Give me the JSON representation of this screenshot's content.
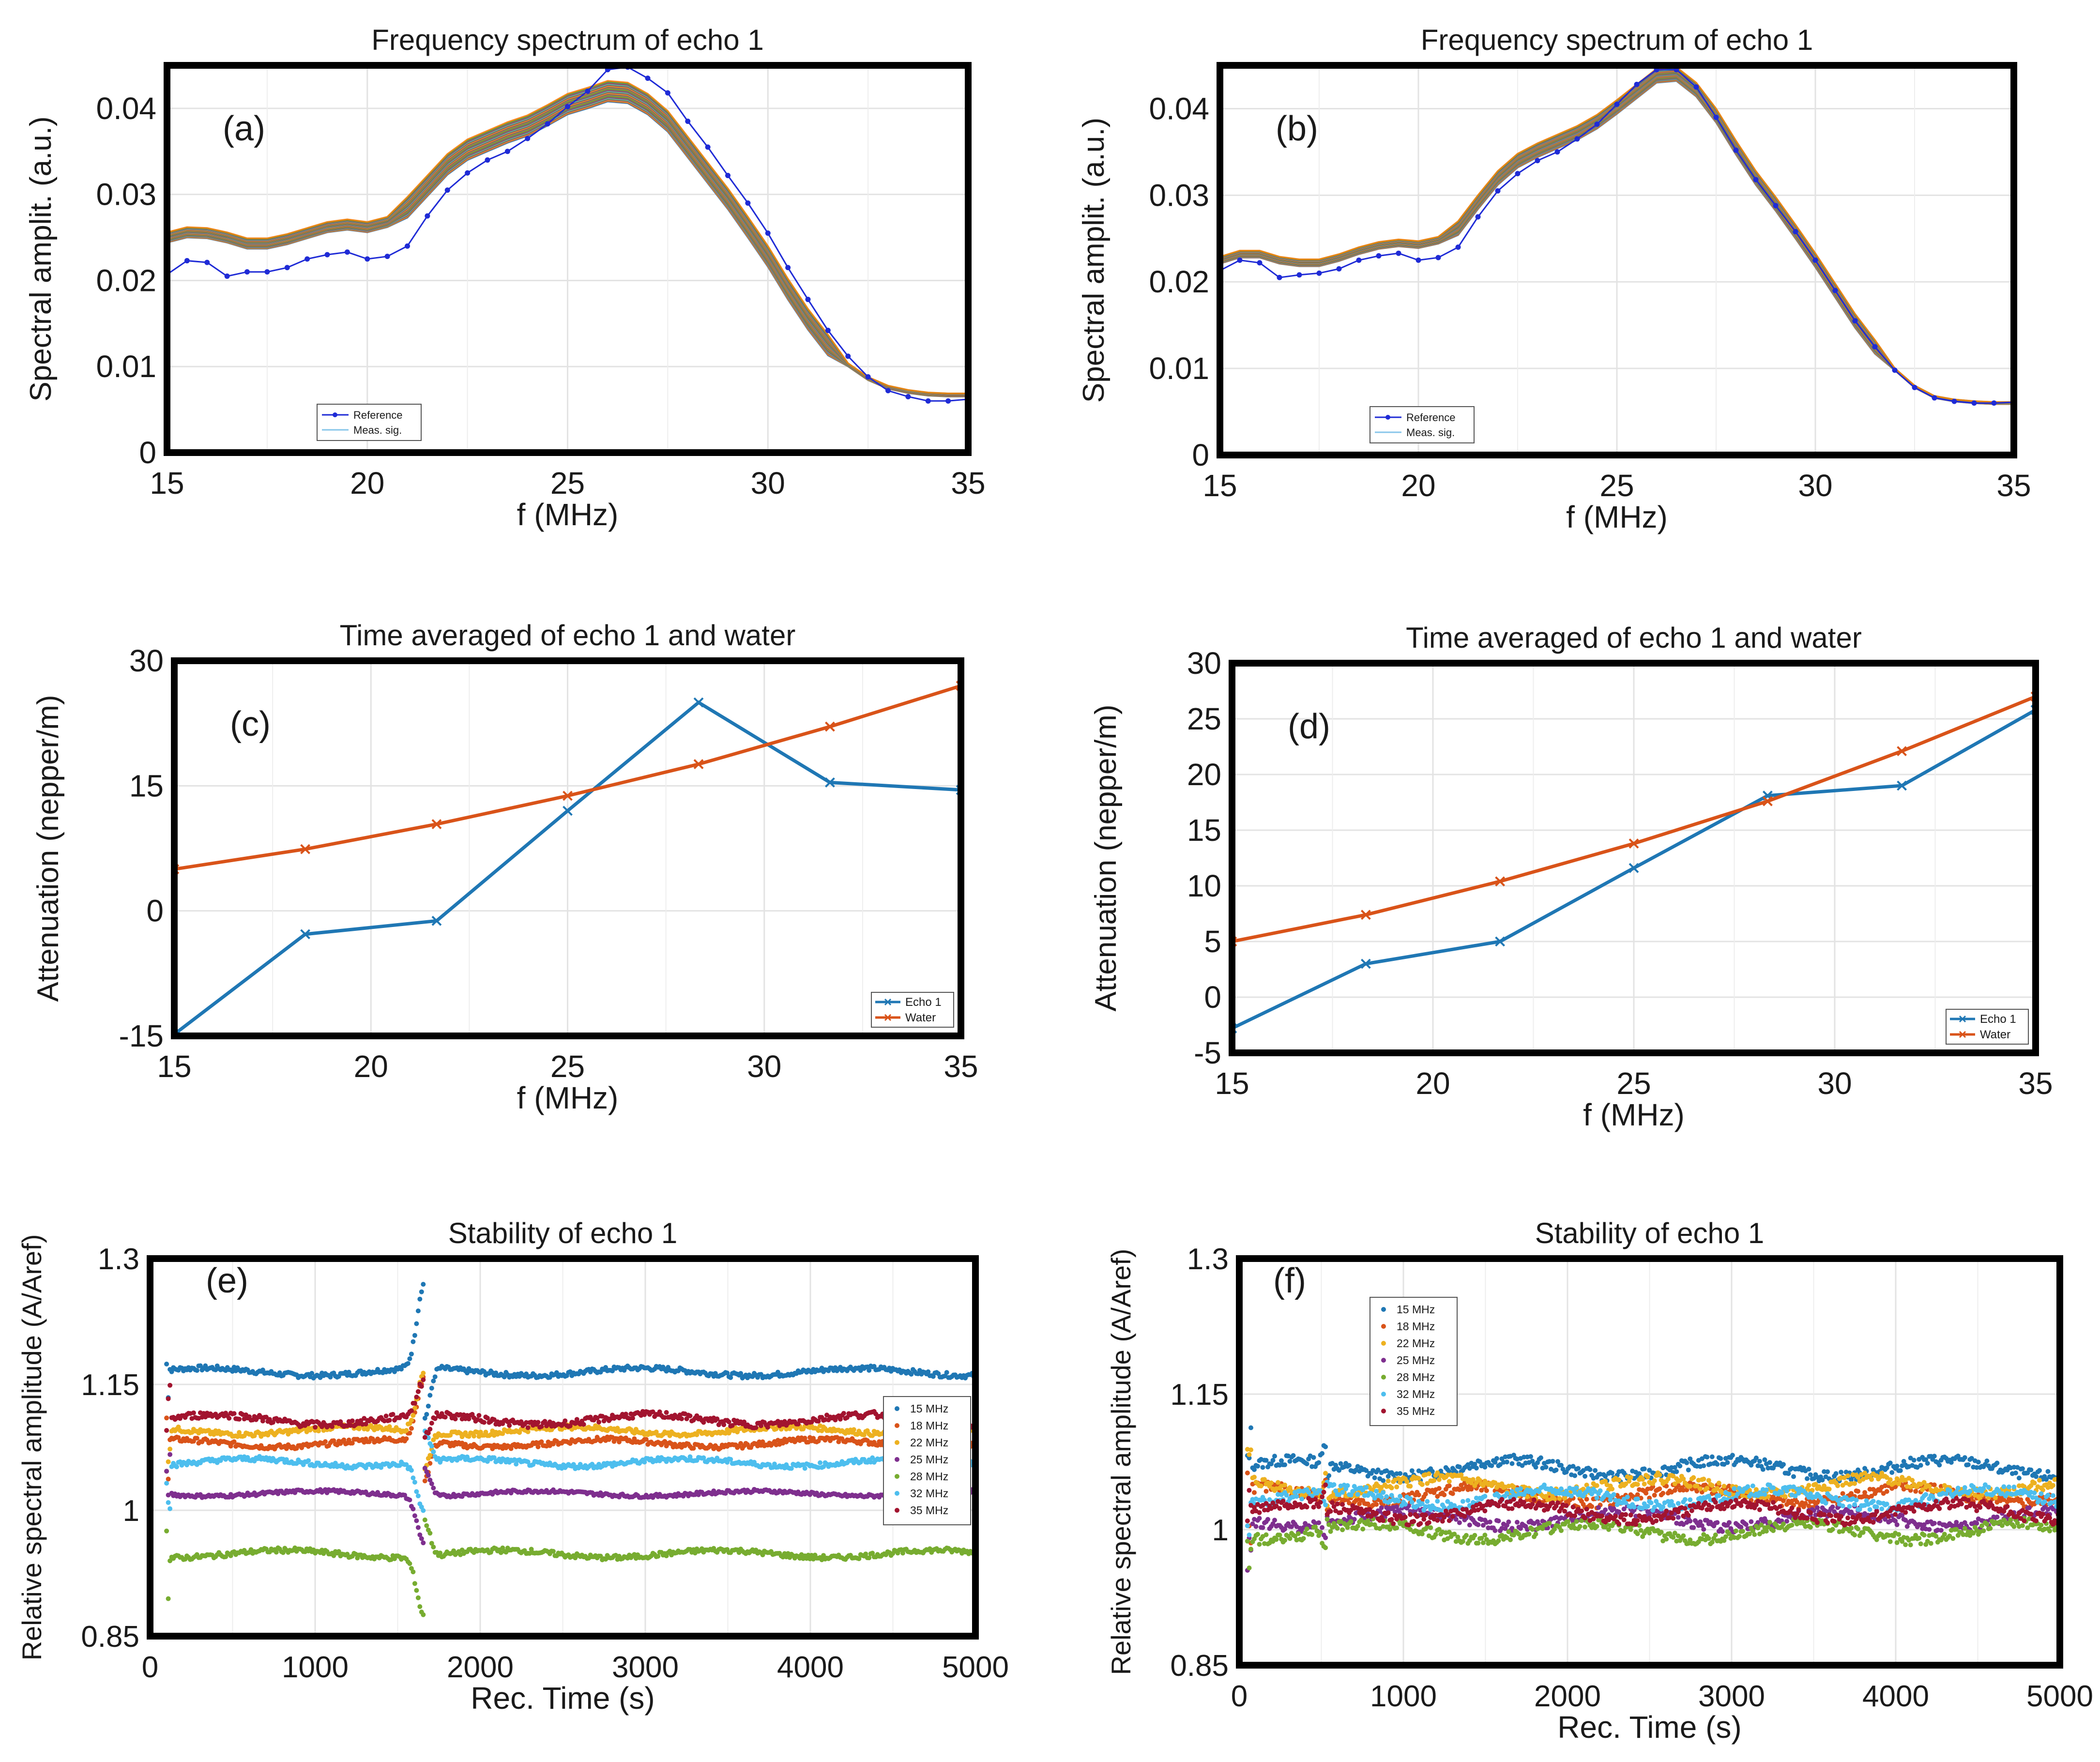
{
  "chart_data": [
    {
      "id": "a",
      "type": "line",
      "panel_label": "(a)",
      "title": "Frequency spectrum of echo 1",
      "xlabel": "f (MHz)",
      "ylabel": "Spectral amplit. (a.u.)",
      "xlim": [
        15,
        35
      ],
      "ylim": [
        0,
        0.045
      ],
      "xticks": [
        15,
        20,
        25,
        30,
        35
      ],
      "xtick_labels": [
        "15",
        "20",
        "25",
        "30",
        "35"
      ],
      "yticks": [
        0,
        0.01,
        0.02,
        0.03,
        0.04
      ],
      "ytick_labels": [
        "0",
        "0.01",
        "0.02",
        "0.03",
        "0.04"
      ],
      "grid": true,
      "legend_position": "bottom-left",
      "legend": [
        "Reference",
        "Meas. sig."
      ],
      "x": [
        15,
        15.5,
        16,
        16.5,
        17,
        17.5,
        18,
        18.5,
        19,
        19.5,
        20,
        20.5,
        21,
        21.5,
        22,
        22.5,
        23,
        23.5,
        24,
        24.5,
        25,
        25.5,
        26,
        26.5,
        27,
        27.5,
        28,
        28.5,
        29,
        29.5,
        30,
        30.5,
        31,
        31.5,
        32,
        32.5,
        33,
        33.5,
        34,
        34.5,
        35
      ],
      "reference": [
        0.0207,
        0.0223,
        0.0221,
        0.0205,
        0.021,
        0.021,
        0.0215,
        0.0225,
        0.023,
        0.0233,
        0.0225,
        0.0228,
        0.024,
        0.0275,
        0.0305,
        0.0325,
        0.034,
        0.035,
        0.0365,
        0.0382,
        0.0402,
        0.042,
        0.0445,
        0.0448,
        0.0435,
        0.0418,
        0.0385,
        0.0355,
        0.0322,
        0.029,
        0.0255,
        0.0215,
        0.0178,
        0.0142,
        0.0112,
        0.0088,
        0.0072,
        0.0065,
        0.006,
        0.006,
        0.0062
      ],
      "measured": [
        0.025,
        0.0256,
        0.0255,
        0.025,
        0.0243,
        0.0243,
        0.0248,
        0.0255,
        0.0262,
        0.0265,
        0.0262,
        0.0268,
        0.0285,
        0.031,
        0.0335,
        0.0352,
        0.0362,
        0.0372,
        0.038,
        0.0392,
        0.0405,
        0.0412,
        0.042,
        0.0418,
        0.0405,
        0.0385,
        0.0355,
        0.0325,
        0.0295,
        0.0262,
        0.0228,
        0.019,
        0.0155,
        0.0125,
        0.0102,
        0.0086,
        0.0076,
        0.0071,
        0.0068,
        0.0067,
        0.0067
      ],
      "measured_count": 30,
      "measured_spread": 0.0012
    },
    {
      "id": "b",
      "type": "line",
      "panel_label": "(b)",
      "title": "Frequency spectrum of echo 1",
      "xlabel": "f (MHz)",
      "ylabel": "Spectral amplit. (a.u.)",
      "xlim": [
        15,
        35
      ],
      "ylim": [
        0,
        0.045
      ],
      "xticks": [
        15,
        20,
        25,
        30,
        35
      ],
      "xtick_labels": [
        "15",
        "20",
        "25",
        "30",
        "35"
      ],
      "yticks": [
        0,
        0.01,
        0.02,
        0.03,
        0.04
      ],
      "ytick_labels": [
        "0",
        "0.01",
        "0.02",
        "0.03",
        "0.04"
      ],
      "grid": true,
      "legend_position": "bottom-left",
      "legend": [
        "Reference",
        "Meas. sig."
      ],
      "x": [
        15,
        15.5,
        16,
        16.5,
        17,
        17.5,
        18,
        18.5,
        19,
        19.5,
        20,
        20.5,
        21,
        21.5,
        22,
        22.5,
        23,
        23.5,
        24,
        24.5,
        25,
        25.5,
        26,
        26.5,
        27,
        27.5,
        28,
        28.5,
        29,
        29.5,
        30,
        30.5,
        31,
        31.5,
        32,
        32.5,
        33,
        33.5,
        34,
        34.5,
        35
      ],
      "reference": [
        0.0213,
        0.0225,
        0.0222,
        0.0205,
        0.0208,
        0.021,
        0.0215,
        0.0225,
        0.023,
        0.0233,
        0.0225,
        0.0228,
        0.024,
        0.0275,
        0.0305,
        0.0325,
        0.034,
        0.035,
        0.0365,
        0.0382,
        0.0405,
        0.0428,
        0.0445,
        0.0445,
        0.0425,
        0.039,
        0.0352,
        0.0318,
        0.0288,
        0.0258,
        0.0225,
        0.019,
        0.0155,
        0.0125,
        0.0098,
        0.0078,
        0.0066,
        0.0062,
        0.006,
        0.006,
        0.0061
      ],
      "measured": [
        0.0225,
        0.0232,
        0.0232,
        0.0225,
        0.0222,
        0.0222,
        0.0228,
        0.0236,
        0.0242,
        0.0245,
        0.0243,
        0.0248,
        0.0262,
        0.0292,
        0.032,
        0.034,
        0.0352,
        0.0362,
        0.0372,
        0.0385,
        0.0402,
        0.042,
        0.0438,
        0.044,
        0.0422,
        0.0392,
        0.0355,
        0.032,
        0.029,
        0.0258,
        0.0225,
        0.019,
        0.0155,
        0.0125,
        0.0099,
        0.0079,
        0.0067,
        0.0063,
        0.0061,
        0.006,
        0.006
      ],
      "measured_count": 30,
      "measured_spread": 0.0008
    },
    {
      "id": "c",
      "type": "line",
      "panel_label": "(c)",
      "title": "Time averaged of echo 1 and water",
      "xlabel": "f (MHz)",
      "ylabel": "Attenuation (nepper/m)",
      "xlim": [
        15,
        35
      ],
      "ylim": [
        -15,
        30
      ],
      "xticks": [
        15,
        20,
        25,
        30,
        35
      ],
      "xtick_labels": [
        "15",
        "20",
        "25",
        "30",
        "35"
      ],
      "yticks": [
        -15,
        0,
        15,
        30
      ],
      "ytick_labels": [
        "-15",
        "0",
        "15",
        "30"
      ],
      "grid": true,
      "legend_position": "bottom-right",
      "x": [
        15,
        18.33,
        21.67,
        25,
        28.33,
        31.67,
        35
      ],
      "series": [
        {
          "name": "Echo 1",
          "color": "#1f77b4",
          "values": [
            -14.8,
            -2.8,
            -1.2,
            12.0,
            25.0,
            15.4,
            14.5
          ]
        },
        {
          "name": "Water",
          "color": "#d95319",
          "values": [
            5.0,
            7.4,
            10.4,
            13.8,
            17.6,
            22.1,
            27.0
          ]
        }
      ]
    },
    {
      "id": "d",
      "type": "line",
      "panel_label": "(d)",
      "title": "Time averaged of echo 1 and water",
      "xlabel": "f (MHz)",
      "ylabel": "Attenuation (nepper/m)",
      "xlim": [
        15,
        35
      ],
      "ylim": [
        -5,
        30
      ],
      "xticks": [
        15,
        20,
        25,
        30,
        35
      ],
      "xtick_labels": [
        "15",
        "20",
        "25",
        "30",
        "35"
      ],
      "yticks": [
        -5,
        0,
        5,
        10,
        15,
        20,
        25,
        30
      ],
      "ytick_labels": [
        "-5",
        "0",
        "5",
        "10",
        "15",
        "20",
        "25",
        "30"
      ],
      "grid": true,
      "legend_position": "bottom-right",
      "x": [
        15,
        18.33,
        21.67,
        25,
        28.33,
        31.67,
        35
      ],
      "series": [
        {
          "name": "Echo 1",
          "color": "#1f77b4",
          "values": [
            -2.8,
            3.0,
            5.0,
            11.6,
            18.1,
            19.0,
            25.8
          ]
        },
        {
          "name": "Water",
          "color": "#d95319",
          "values": [
            5.0,
            7.4,
            10.4,
            13.8,
            17.6,
            22.1,
            27.0
          ]
        }
      ]
    },
    {
      "id": "e",
      "type": "scatter",
      "panel_label": "(e)",
      "title": "Stability of echo 1",
      "xlabel": "Rec. Time (s)",
      "ylabel": "Relative spectral amplitude (A/Aref)",
      "xlim": [
        0,
        5000
      ],
      "ylim": [
        0.85,
        1.3
      ],
      "xticks": [
        0,
        1000,
        2000,
        3000,
        4000,
        5000
      ],
      "xtick_labels": [
        "0",
        "1000",
        "2000",
        "3000",
        "4000",
        "5000"
      ],
      "yticks": [
        0.85,
        1.0,
        1.15,
        1.3
      ],
      "ytick_labels": [
        "0.85",
        "1",
        "1.15",
        "1.3"
      ],
      "grid": true,
      "legend_position": "bottom-right",
      "x_start": 100,
      "x_end": 5000,
      "points": 480,
      "disturbance_center": 1660,
      "disturbance_width": 60,
      "series": [
        {
          "name": "15 MHz",
          "color": "#1f77b4",
          "level": 1.165,
          "noise": 0.003,
          "disturbance": 0.1
        },
        {
          "name": "18 MHz",
          "color": "#d95319",
          "level": 1.08,
          "noise": 0.003,
          "disturbance": 0.075
        },
        {
          "name": "22 MHz",
          "color": "#edb120",
          "level": 1.095,
          "noise": 0.003,
          "disturbance": 0.07
        },
        {
          "name": "25 MHz",
          "color": "#7e2f8e",
          "level": 1.02,
          "noise": 0.002,
          "disturbance": -0.055
        },
        {
          "name": "28 MHz",
          "color": "#77ac30",
          "level": 0.948,
          "noise": 0.003,
          "disturbance": -0.07
        },
        {
          "name": "32 MHz",
          "color": "#4dbeee",
          "level": 1.057,
          "noise": 0.003,
          "disturbance": -0.06
        },
        {
          "name": "35 MHz",
          "color": "#a2142f",
          "level": 1.108,
          "noise": 0.004,
          "disturbance": 0.04
        }
      ]
    },
    {
      "id": "f",
      "type": "scatter",
      "panel_label": "(f)",
      "title": "Stability of echo 1",
      "xlabel": "Rec. Time (s)",
      "ylabel": "Relative spectral amplitude (A/Aref)",
      "xlim": [
        0,
        5000
      ],
      "ylim": [
        0.85,
        1.3
      ],
      "xticks": [
        0,
        1000,
        2000,
        3000,
        4000,
        5000
      ],
      "xtick_labels": [
        "0",
        "1000",
        "2000",
        "3000",
        "4000",
        "5000"
      ],
      "yticks": [
        0.85,
        1.0,
        1.15,
        1.3
      ],
      "ytick_labels": [
        "0.85",
        "1",
        "1.15",
        "1.3"
      ],
      "grid": true,
      "legend_position": "top-left",
      "x_start": 50,
      "x_end": 5000,
      "points": 480,
      "disturbance_center": 530,
      "disturbance_width": 25,
      "series": [
        {
          "name": "15 MHz",
          "color": "#1f77b4",
          "level": 1.068,
          "noise": 0.006,
          "disturbance": 0.025
        },
        {
          "name": "18 MHz",
          "color": "#d95319",
          "level": 1.038,
          "noise": 0.006,
          "disturbance": 0.02
        },
        {
          "name": "22 MHz",
          "color": "#edb120",
          "level": 1.048,
          "noise": 0.006,
          "disturbance": 0.02
        },
        {
          "name": "25 MHz",
          "color": "#7e2f8e",
          "level": 1.012,
          "noise": 0.006,
          "disturbance": -0.02
        },
        {
          "name": "28 MHz",
          "color": "#77ac30",
          "level": 0.998,
          "noise": 0.006,
          "disturbance": -0.025
        },
        {
          "name": "32 MHz",
          "color": "#4dbeee",
          "level": 1.035,
          "noise": 0.006,
          "disturbance": -0.02
        },
        {
          "name": "35 MHz",
          "color": "#a2142f",
          "level": 1.02,
          "noise": 0.006,
          "disturbance": 0.02
        }
      ]
    }
  ]
}
